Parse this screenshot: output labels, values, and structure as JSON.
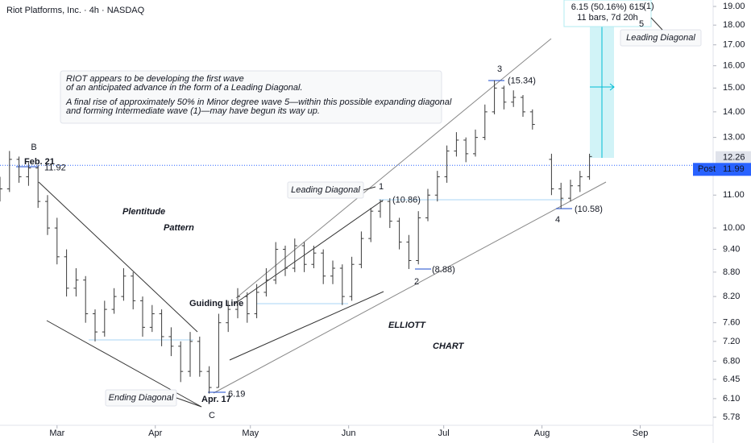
{
  "chart_data": {
    "type": "ohlc",
    "title": "Riot Platforms, Inc. · 4h · NASDAQ",
    "log_scale": true,
    "grid": false,
    "color": "#3a3a3a",
    "x": [
      11,
      14,
      17,
      20,
      23,
      26,
      29,
      32,
      35,
      38,
      41,
      44,
      47,
      50,
      53,
      56,
      59,
      62,
      65,
      68,
      71,
      74,
      77,
      80,
      83,
      86,
      89,
      92,
      95,
      98,
      101,
      104,
      107,
      110,
      113,
      116,
      119,
      122,
      125,
      128,
      131,
      134,
      137,
      140,
      143,
      146,
      149,
      152,
      155,
      158,
      161,
      164,
      167,
      170,
      173,
      176,
      179,
      185,
      188,
      191,
      194,
      197
    ],
    "open": [
      11.0,
      11.2,
      12.2,
      11.6,
      11.9,
      10.8,
      10.0,
      9.2,
      8.4,
      8.6,
      7.8,
      7.4,
      7.9,
      8.2,
      8.7,
      8.1,
      7.5,
      7.8,
      7.3,
      7.1,
      6.6,
      7.2,
      6.6,
      6.3,
      7.6,
      7.9,
      8.2,
      7.8,
      8.3,
      8.6,
      9.4,
      8.9,
      9.5,
      9.0,
      9.3,
      8.7,
      8.9,
      8.2,
      9.0,
      9.7,
      10.5,
      10.8,
      10.2,
      9.6,
      9.1,
      10.3,
      11.0,
      11.6,
      12.5,
      12.9,
      12.4,
      13.0,
      14.0,
      15.0,
      14.4,
      14.6,
      14.0,
      12.2,
      11.2,
      10.9,
      11.3,
      11.6
    ],
    "high": [
      11.6,
      12.5,
      12.3,
      12.1,
      12.0,
      11.0,
      10.3,
      9.4,
      8.9,
      8.7,
      7.9,
      8.1,
      8.4,
      8.9,
      8.8,
      8.2,
      8.0,
      7.9,
      7.5,
      7.2,
      7.4,
      7.3,
      6.7,
      7.8,
      8.1,
      8.4,
      8.3,
      8.5,
      8.9,
      9.6,
      9.5,
      9.7,
      9.6,
      9.5,
      9.4,
      9.1,
      9.0,
      9.2,
      9.9,
      10.6,
      10.86,
      10.9,
      10.3,
      9.8,
      10.5,
      11.2,
      11.8,
      12.7,
      13.2,
      13.0,
      13.3,
      14.3,
      15.34,
      15.1,
      14.9,
      14.7,
      14.1,
      12.4,
      11.4,
      11.5,
      11.8,
      12.4
    ],
    "low": [
      10.8,
      11.1,
      11.4,
      11.3,
      10.6,
      9.8,
      9.0,
      8.2,
      8.2,
      7.6,
      7.2,
      7.3,
      7.8,
      8.1,
      7.9,
      7.3,
      7.4,
      7.1,
      6.9,
      6.4,
      6.5,
      6.5,
      6.19,
      6.3,
      7.4,
      7.7,
      7.6,
      7.7,
      8.2,
      8.5,
      8.7,
      8.8,
      8.8,
      8.9,
      8.5,
      8.5,
      8.0,
      8.1,
      8.9,
      9.6,
      10.3,
      10.0,
      9.4,
      8.88,
      9.0,
      10.2,
      10.8,
      11.4,
      12.3,
      12.1,
      12.3,
      12.9,
      13.9,
      14.1,
      14.2,
      13.8,
      13.3,
      11.0,
      10.58,
      10.8,
      11.1,
      11.5
    ],
    "close": [
      11.2,
      12.2,
      11.6,
      11.9,
      10.8,
      10.0,
      9.2,
      8.4,
      8.6,
      7.8,
      7.4,
      7.9,
      8.2,
      8.7,
      8.1,
      7.5,
      7.8,
      7.3,
      7.1,
      6.6,
      7.2,
      6.6,
      6.3,
      7.6,
      7.9,
      8.2,
      7.8,
      8.3,
      8.6,
      9.4,
      8.9,
      9.5,
      9.0,
      9.3,
      8.7,
      8.9,
      8.2,
      9.0,
      9.7,
      10.5,
      10.8,
      10.2,
      9.6,
      9.1,
      10.3,
      11.0,
      11.6,
      12.5,
      12.9,
      12.4,
      13.0,
      14.0,
      15.0,
      14.4,
      14.6,
      14.0,
      13.5,
      11.2,
      10.9,
      11.3,
      11.6,
      12.3
    ],
    "xlim": [
      11,
      236
    ],
    "xticks": [
      {
        "value": 29,
        "label": "Mar"
      },
      {
        "value": 60,
        "label": "Apr"
      },
      {
        "value": 90,
        "label": "May"
      },
      {
        "value": 121,
        "label": "Jun"
      },
      {
        "value": 151,
        "label": "Jul"
      },
      {
        "value": 182,
        "label": "Aug"
      },
      {
        "value": 213,
        "label": "Sep"
      }
    ],
    "ylim": [
      5.78,
      19
    ],
    "yticks": [
      {
        "value": 19,
        "label": "19.00"
      },
      {
        "value": 18,
        "label": "18.00"
      },
      {
        "value": 17,
        "label": "17.00"
      },
      {
        "value": 16,
        "label": "16.00"
      },
      {
        "value": 15,
        "label": "15.00"
      },
      {
        "value": 14,
        "label": "14.00"
      },
      {
        "value": 13,
        "label": "13.00"
      },
      {
        "value": 11,
        "label": "11.00"
      },
      {
        "value": 10,
        "label": "10.00"
      },
      {
        "value": 9.4,
        "label": "9.40"
      },
      {
        "value": 8.8,
        "label": "8.80"
      },
      {
        "value": 8.2,
        "label": "8.20"
      },
      {
        "value": 7.6,
        "label": "7.60"
      },
      {
        "value": 7.2,
        "label": "7.20"
      },
      {
        "value": 6.8,
        "label": "6.80"
      },
      {
        "value": 6.45,
        "label": "6.45"
      },
      {
        "value": 6.1,
        "label": "6.10"
      },
      {
        "value": 5.78,
        "label": "5.78"
      }
    ],
    "note": [
      "RIOT appears to be developing the first wave",
      "of an anticipated advance in the form of a Leading Diagonal.",
      "A final rise of approximately 50% in Minor degree wave 5—within this possible expanding diagonal",
      " and forming Intermediate wave (1)—may have begun its way up."
    ],
    "wave_labels": [
      "B",
      "C",
      "1",
      "2",
      "3",
      "4",
      "5",
      "(1)"
    ],
    "pattern_labels": [
      "Leading Diagonal",
      "Leading Diagonal",
      "Ending Diagonal"
    ],
    "date_labels": [
      "Feb. 21",
      "Apr. 17"
    ],
    "price_labels": [
      {
        "value": 11.92,
        "label": "11.92"
      },
      {
        "value": 6.19,
        "label": "6.19"
      },
      {
        "value": 15.34,
        "label": "(15.34)"
      },
      {
        "value": 10.86,
        "label": "(10.86)"
      },
      {
        "value": 8.88,
        "label": "(8.88)"
      },
      {
        "value": 10.58,
        "label": "(10.58)"
      }
    ],
    "measure": [
      "6.15 (50.16%) 615",
      "11 bars, 7d 20h"
    ],
    "last_price": {
      "value": 12.26,
      "label": "12.26"
    },
    "post_label": "Post",
    "post_price": {
      "value": 11.99,
      "label": "11.99"
    },
    "watermarks": [
      "Plentitude",
      "Pattern",
      "ELLIOTT",
      "CHART",
      "Guiding Line"
    ]
  }
}
